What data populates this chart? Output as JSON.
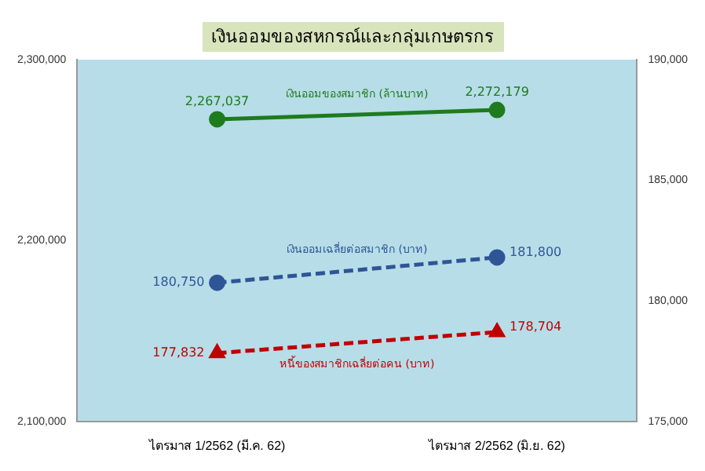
{
  "chart_data": {
    "type": "line",
    "title": "เงินออมของสหกรณ์และกลุ่มเกษตรกร",
    "categories": [
      "ไตรมาส 1/2562 (มี.ค. 62)",
      "ไตรมาส 2/2562 (มิ.ย. 62)"
    ],
    "series": [
      {
        "name": "เงินออมของสมาชิก (ล้านบาท)",
        "color": "#1e7b1e",
        "values": [
          2267037,
          2272179
        ],
        "value_labels": [
          "2,267,037",
          "2,272,179"
        ],
        "line_style": "solid",
        "marker": "circle"
      },
      {
        "name": "เงินออมเฉลี่ยต่อสมาชิก (บาท)",
        "color": "#2f5597",
        "values": [
          180750,
          181800
        ],
        "value_labels": [
          "180,750",
          "181,800"
        ],
        "axis": "y2",
        "line_style": "dashed",
        "marker": "circle"
      },
      {
        "name": "หนี้ของสมาชิกเฉลี่ยต่อคน (บาท)",
        "color": "#c00000",
        "values": [
          177832,
          178704
        ],
        "value_labels": [
          "177,832",
          "178,704"
        ],
        "axis": "y2",
        "line_style": "dashed",
        "marker": "triangle"
      }
    ],
    "ylim": [
      2100000,
      2300000
    ],
    "yticks": [
      {
        "value": 2100000,
        "label": "2,100,000"
      },
      {
        "value": 2200000,
        "label": "2,200,000"
      },
      {
        "value": 2300000,
        "label": "2,300,000"
      }
    ],
    "y2lim": [
      175000,
      190000
    ],
    "y2ticks": [
      {
        "value": 175000,
        "label": "175,000"
      },
      {
        "value": 180000,
        "label": "180,000"
      },
      {
        "value": 185000,
        "label": "185,000"
      },
      {
        "value": 190000,
        "label": "190,000"
      }
    ],
    "legend": false,
    "grid": false
  }
}
